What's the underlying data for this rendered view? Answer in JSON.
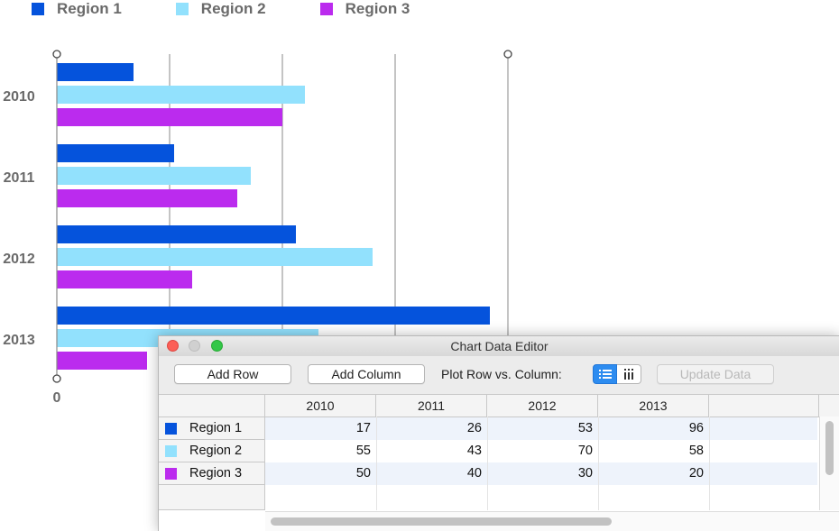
{
  "chart_data": {
    "type": "bar",
    "orientation": "horizontal",
    "categories": [
      "2010",
      "2011",
      "2012",
      "2013"
    ],
    "series": [
      {
        "name": "Region 1",
        "color": "#0553dc",
        "values": [
          17,
          26,
          53,
          96
        ]
      },
      {
        "name": "Region 2",
        "color": "#92e1fd",
        "values": [
          55,
          43,
          70,
          58
        ]
      },
      {
        "name": "Region 3",
        "color": "#bb2bee",
        "values": [
          50,
          40,
          30,
          20
        ]
      }
    ],
    "x_tick_label": "0",
    "xlim": [
      0,
      100
    ],
    "grid": true,
    "legend_position": "top-left"
  },
  "editor": {
    "title": "Chart Data Editor",
    "add_row_label": "Add Row",
    "add_column_label": "Add Column",
    "plot_label": "Plot Row vs. Column:",
    "update_label": "Update Data",
    "rows_icon": "list-rows-icon",
    "columns_icon": "columns-icon",
    "columns": [
      "2010",
      "2011",
      "2012",
      "2013"
    ],
    "rows": [
      {
        "label": "Region 1",
        "color": "#0553dc",
        "values": [
          "17",
          "26",
          "53",
          "96"
        ]
      },
      {
        "label": "Region 2",
        "color": "#92e1fd",
        "values": [
          "55",
          "43",
          "70",
          "58"
        ]
      },
      {
        "label": "Region 3",
        "color": "#bb2bee",
        "values": [
          "50",
          "40",
          "30",
          "20"
        ]
      }
    ]
  }
}
